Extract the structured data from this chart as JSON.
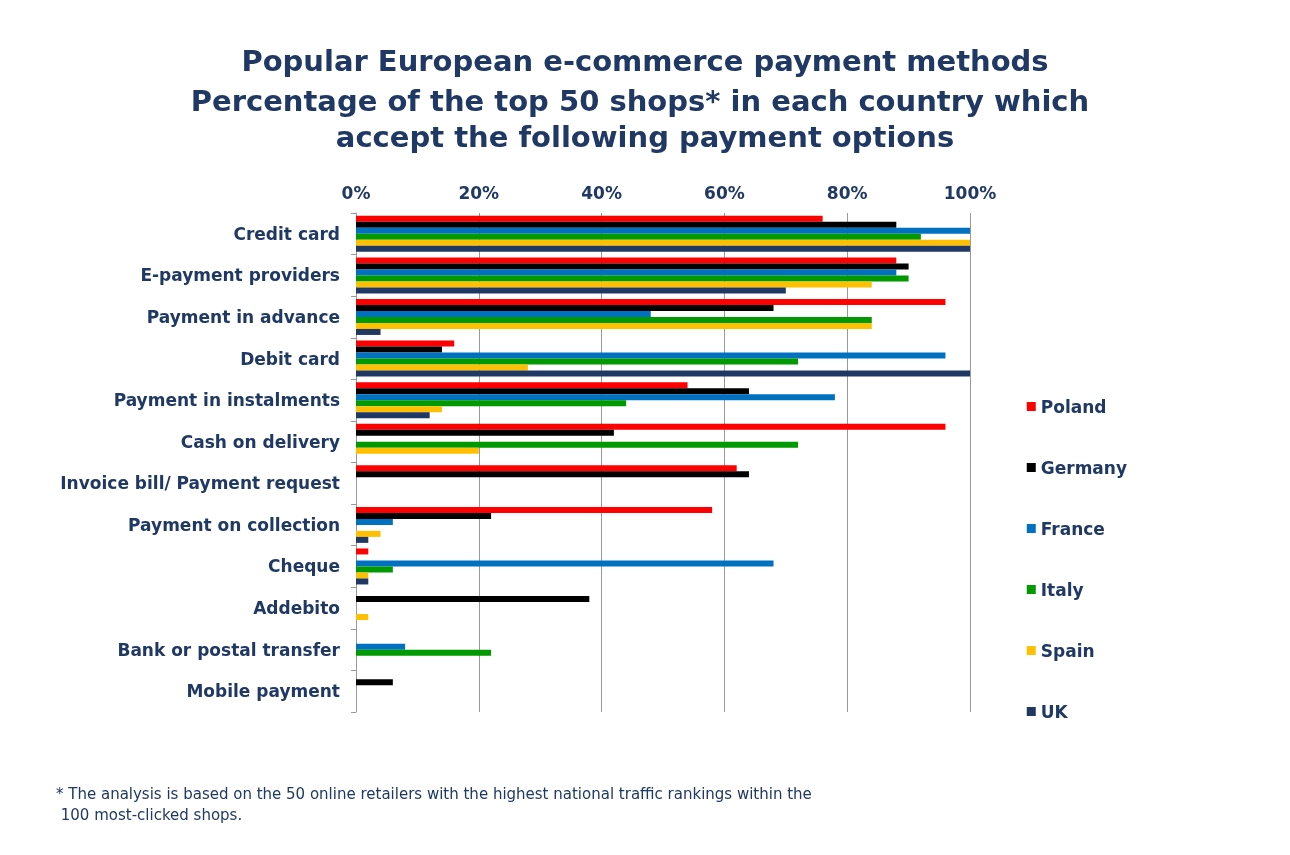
{
  "chart_data": {
    "type": "bar",
    "orientation": "horizontal",
    "title": "Popular European e-commerce payment methods",
    "subtitle": "Percentage of the top 50 shops* in each country which accept the following payment options",
    "categories": [
      "Credit card",
      "E-payment providers",
      "Payment in advance",
      "Debit card",
      "Payment in instalments",
      "Cash on delivery",
      "Invoice bill/ Payment request",
      "Payment on collection",
      "Cheque",
      "Addebito",
      "Bank or postal transfer",
      "Mobile payment"
    ],
    "series": [
      {
        "name": "Poland",
        "color": "#ff0000",
        "values": [
          76,
          88,
          96,
          16,
          54,
          96,
          62,
          58,
          2,
          0,
          0,
          0
        ]
      },
      {
        "name": "Germany",
        "color": "#000000",
        "values": [
          88,
          90,
          68,
          14,
          64,
          42,
          64,
          22,
          0,
          38,
          0,
          6
        ]
      },
      {
        "name": "France",
        "color": "#0070c0",
        "values": [
          100,
          88,
          48,
          96,
          78,
          0,
          0,
          6,
          68,
          0,
          8,
          0
        ]
      },
      {
        "name": "Italy",
        "color": "#009900",
        "values": [
          92,
          90,
          84,
          72,
          44,
          72,
          0,
          0,
          6,
          0,
          22,
          0
        ]
      },
      {
        "name": "Spain",
        "color": "#ffc000",
        "values": [
          100,
          84,
          84,
          28,
          14,
          20,
          0,
          4,
          2,
          2,
          0,
          0
        ]
      },
      {
        "name": "UK",
        "color": "#1f3864",
        "values": [
          100,
          70,
          4,
          100,
          12,
          0,
          0,
          2,
          2,
          0,
          0,
          0
        ]
      }
    ],
    "xlim": [
      0,
      100
    ],
    "xticks": [
      {
        "value": 0,
        "label": "0%"
      },
      {
        "value": 20,
        "label": "20%"
      },
      {
        "value": 40,
        "label": "40%"
      },
      {
        "value": 60,
        "label": "60%"
      },
      {
        "value": 80,
        "label": "80%"
      },
      {
        "value": 100,
        "label": "100%"
      }
    ],
    "grid": "x",
    "legend": "right",
    "annotations": [
      "* The analysis is based on the 50 online retailers with the highest national traffic rankings within the 100 most-clicked shops."
    ]
  }
}
